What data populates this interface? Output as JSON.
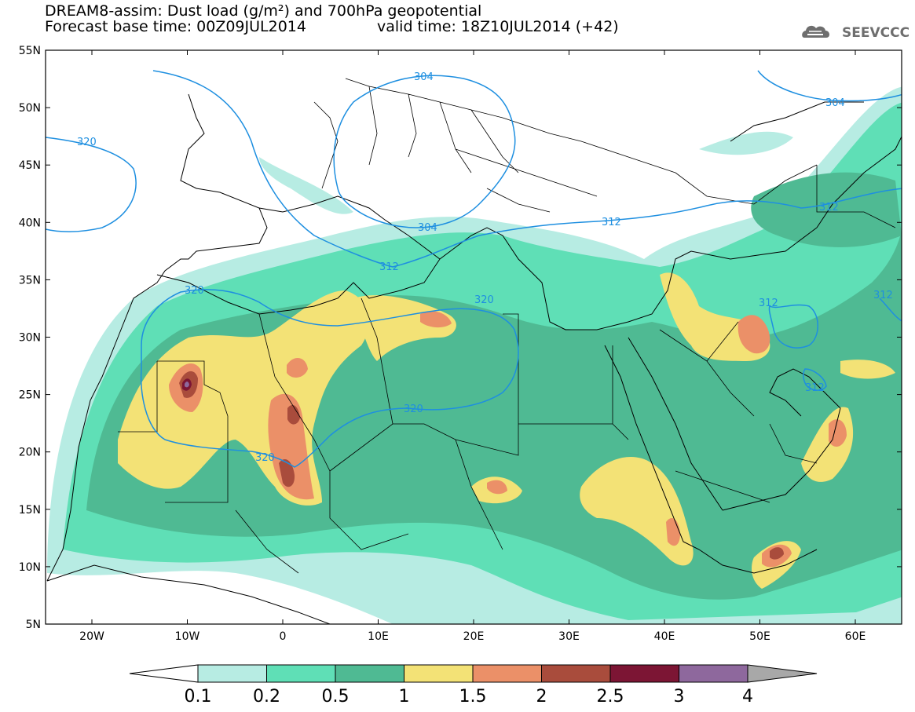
{
  "header": {
    "title_line1": "DREAM8-assim: Dust load (g/m²) and 700hPa geopotential",
    "base_time": "Forecast base time: 00Z09JUL2014",
    "valid_time": "valid time: 18Z10JUL2014 (+42)",
    "logo_text": "SEEVCCC"
  },
  "map": {
    "lat_labels": [
      "55N",
      "50N",
      "45N",
      "40N",
      "35N",
      "30N",
      "25N",
      "20N",
      "15N",
      "10N",
      "5N"
    ],
    "lon_labels": [
      "20W",
      "10W",
      "0",
      "10E",
      "20E",
      "30E",
      "40E",
      "50E",
      "60E"
    ],
    "contour_labels": {
      "c304a": "304",
      "c304b": "304",
      "c304c": "304",
      "c312a": "312",
      "c312b": "312",
      "c312c": "312",
      "c312d": "312",
      "c312e": "312",
      "c312f": "312",
      "c320a": "320",
      "c320b": "320",
      "c320c": "320",
      "c320d": "320",
      "c320e": "320"
    },
    "colors": {
      "c01": "#b7ece3",
      "c02": "#5fdfb6",
      "c05": "#4fba93",
      "c1": "#f3e276",
      "c15": "#eb9068",
      "c2": "#a94c3c",
      "c25": "#7c1534",
      "c3": "#8e689d",
      "c4": "#a8a8a8",
      "contour": "#1e8fe0"
    }
  },
  "colorbar": {
    "labels": [
      "0.1",
      "0.2",
      "0.5",
      "1",
      "1.5",
      "2",
      "2.5",
      "3",
      "4"
    ]
  }
}
